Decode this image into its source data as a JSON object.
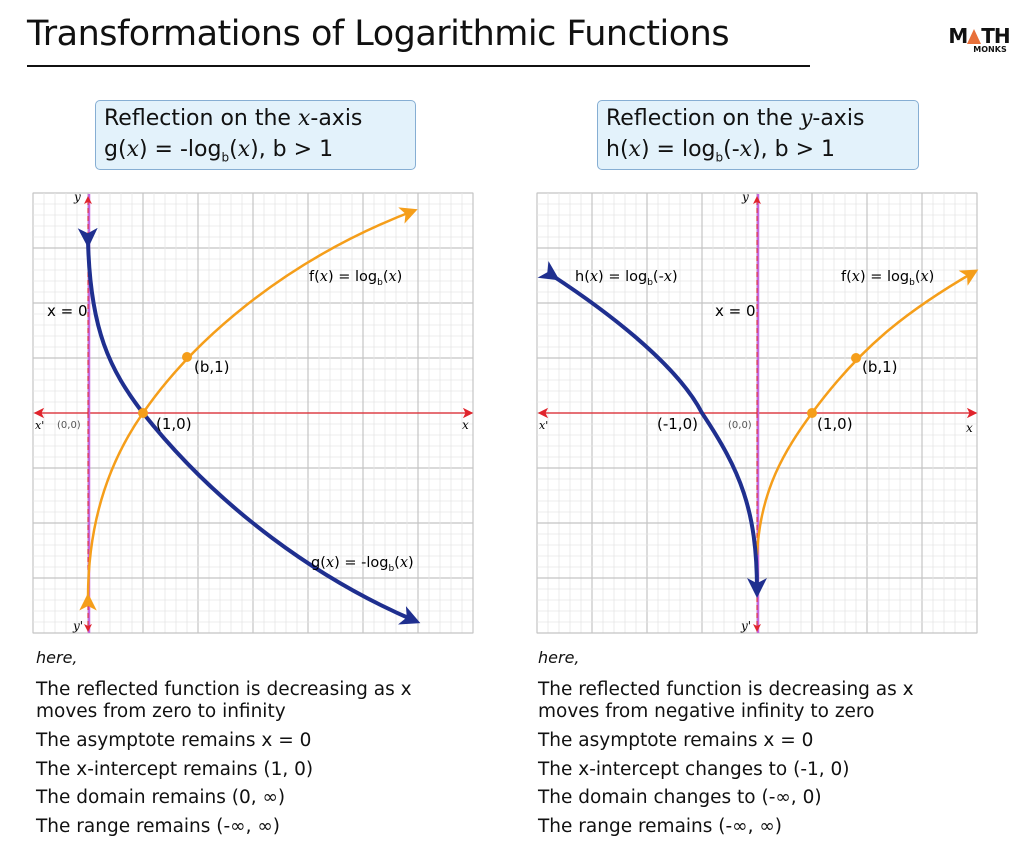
{
  "title": "Transformations of Logarithmic Functions",
  "logo": {
    "top": "MATH",
    "bottom": "MONKS"
  },
  "colors": {
    "f_curve": "#f59e1a",
    "reflected_curve": "#1f2f8f",
    "axes": "#e0242c",
    "asymptote": "#c766dd",
    "box_bg": "#e3f2fb"
  },
  "left": {
    "box": {
      "line1_pre": "Reflection on the ",
      "line1_var": "x",
      "line1_post": "-axis",
      "line2": "g(x) = -log_b(x), b > 1"
    },
    "labels": {
      "y": "y",
      "y_prime": "y'",
      "x": "x",
      "x_prime": "x'",
      "origin": "(0,0)",
      "asymptote": "x = 0",
      "intercept": "(1,0)",
      "point": "(b,1)",
      "f": "f(x) = log_b(x)",
      "g": "g(x) = -log_b(x)"
    },
    "notes": {
      "here": "here,",
      "items": [
        "The reflected function is decreasing as x moves from zero to infinity",
        "The asymptote remains x = 0",
        "The x-intercept remains (1, 0)",
        "The domain remains (0, ∞)",
        "The range remains (-∞, ∞)"
      ]
    }
  },
  "right": {
    "box": {
      "line1_pre": "Reflection on the ",
      "line1_var": "y",
      "line1_post": "-axis",
      "line2": "h(x) = log_b(-x), b > 1"
    },
    "labels": {
      "y": "y",
      "y_prime": "y'",
      "x": "x",
      "x_prime": "x'",
      "origin": "(0,0)",
      "asymptote": "x = 0",
      "intercept_neg": "(-1,0)",
      "intercept": "(1,0)",
      "point": "(b,1)",
      "f": "f(x) = log_b(x)",
      "h": "h(x) = log_b(-x)"
    },
    "notes": {
      "here": "here,",
      "items": [
        "The reflected function is decreasing as x moves from negative infinity to zero",
        "The asymptote remains x = 0",
        "The x-intercept changes to (-1, 0)",
        "The domain changes to (-∞, 0)",
        "The range remains (-∞, ∞)"
      ]
    }
  }
}
